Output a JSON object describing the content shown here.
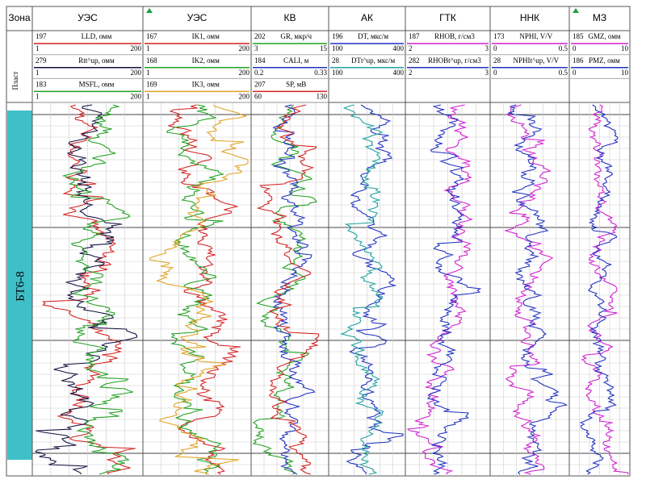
{
  "header": {
    "zone": "Зона",
    "plast": "Пласт"
  },
  "zone_label": "БТ6-8",
  "tracks": [
    {
      "title": "УЭС",
      "curves": [
        {
          "id": "197",
          "name": "LLD, омм",
          "min": "1",
          "max": "200",
          "color": "#d42020"
        },
        {
          "id": "279",
          "name": "Rtt^up, омм",
          "min": "1",
          "max": "200",
          "color": "#101040"
        },
        {
          "id": "183",
          "name": "MSFL, омм",
          "min": "1",
          "max": "200",
          "color": "#20a020"
        }
      ]
    },
    {
      "title": "УЭС",
      "curves": [
        {
          "id": "167",
          "name": "IK1, омм",
          "min": "1",
          "max": "200",
          "color": "#d42020"
        },
        {
          "id": "168",
          "name": "IK2, омм",
          "min": "1",
          "max": "200",
          "color": "#20a020"
        },
        {
          "id": "169",
          "name": "IK3, омм",
          "min": "1",
          "max": "200",
          "color": "#e0a020"
        }
      ]
    },
    {
      "title": "КВ",
      "curves": [
        {
          "id": "202",
          "name": "GR, мкр/ч",
          "min": "3",
          "max": "15",
          "color": "#20a020"
        },
        {
          "id": "184",
          "name": "CALI, м",
          "min": "0.2",
          "max": "0.33",
          "color": "#2030c0"
        },
        {
          "id": "207",
          "name": "SP, мВ",
          "min": "60",
          "max": "130",
          "color": "#d42020"
        }
      ]
    },
    {
      "title": "АК",
      "curves": [
        {
          "id": "196",
          "name": "DT, мкс/м",
          "min": "100",
          "max": "400",
          "color": "#2030c0"
        },
        {
          "id": "28",
          "name": "DTt^up, мкс/м",
          "min": "100",
          "max": "400",
          "color": "#20a0a0"
        }
      ]
    },
    {
      "title": "ГТК",
      "curves": [
        {
          "id": "187",
          "name": "RHOB, г/см3",
          "min": "2",
          "max": "3",
          "color": "#d020d0"
        },
        {
          "id": "282",
          "name": "RHOBt^up, г/см3",
          "min": "2",
          "max": "3",
          "color": "#2030c0"
        }
      ]
    },
    {
      "title": "ННК",
      "curves": [
        {
          "id": "173",
          "name": "NPHI, V/V",
          "min": "0",
          "max": "0.5",
          "color": "#d020d0"
        },
        {
          "id": "28",
          "name": "NPHIt^up, V/V",
          "min": "0",
          "max": "0.5",
          "color": "#2030c0"
        }
      ]
    },
    {
      "title": "МЗ",
      "curves": [
        {
          "id": "185",
          "name": "GMZ, омм",
          "min": "0",
          "max": "10",
          "color": "#d020d0"
        },
        {
          "id": "186",
          "name": "PMZ, омм",
          "min": "0",
          "max": "10",
          "color": "#2030c0"
        }
      ]
    }
  ]
}
